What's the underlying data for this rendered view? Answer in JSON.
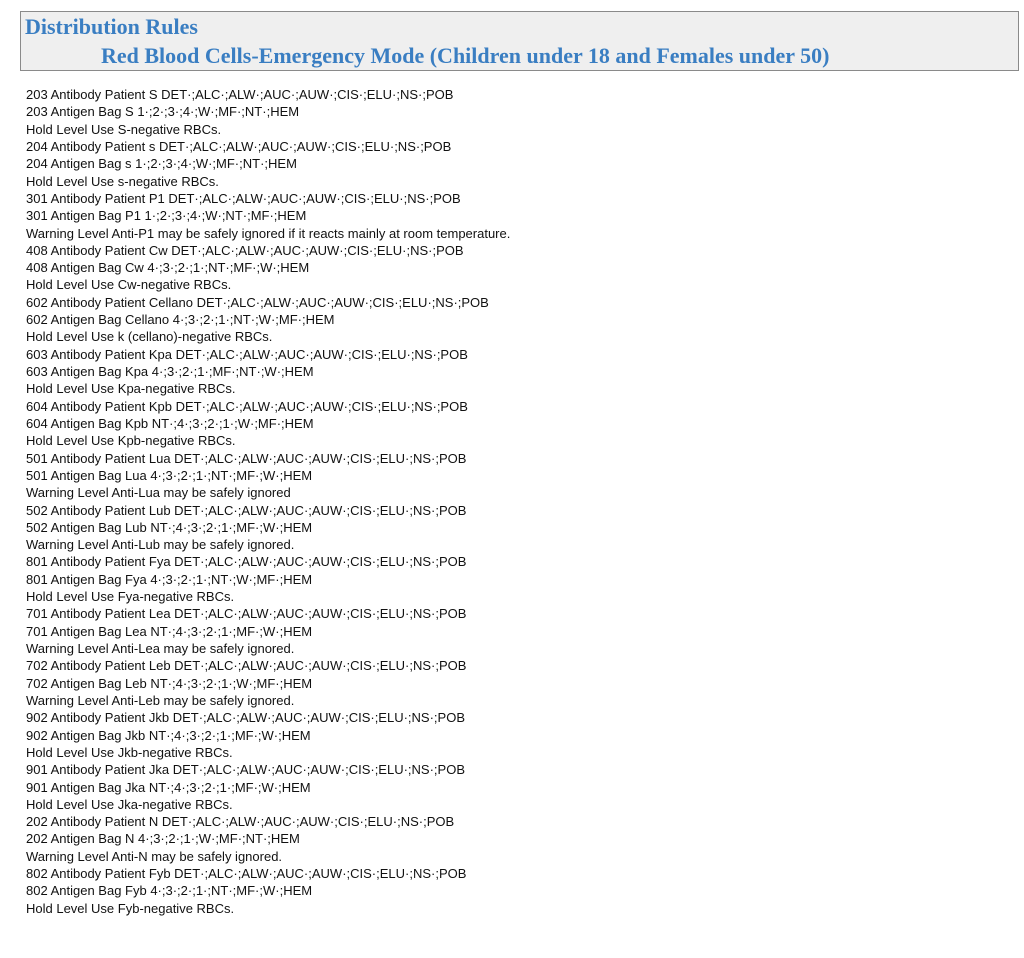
{
  "header": {
    "title": "Distribution Rules",
    "subtitle": "Red Blood Cells-Emergency Mode (Children under 18 and Females under 50)",
    "title_color": "#3a7ec2"
  },
  "rules": [
    "203 Antibody Patient S DET·;ALC·;ALW·;AUC·;AUW·;CIS·;ELU·;NS·;POB",
    "203 Antigen Bag S 1·;2·;3·;4·;W·;MF·;NT·;HEM",
    "Hold Level Use S-negative RBCs.",
    "204 Antibody Patient s DET·;ALC·;ALW·;AUC·;AUW·;CIS·;ELU·;NS·;POB",
    "204 Antigen Bag s 1·;2·;3·;4·;W·;MF·;NT·;HEM",
    "Hold Level Use s-negative RBCs.",
    "301 Antibody Patient P1 DET·;ALC·;ALW·;AUC·;AUW·;CIS·;ELU·;NS·;POB",
    "301 Antigen Bag P1 1·;2·;3·;4·;W·;NT·;MF·;HEM",
    "Warning Level Anti-P1 may be safely ignored if it reacts mainly at room temperature.",
    "408 Antibody Patient Cw DET·;ALC·;ALW·;AUC·;AUW·;CIS·;ELU·;NS·;POB",
    "408 Antigen Bag Cw 4·;3·;2·;1·;NT·;MF·;W·;HEM",
    "Hold Level Use Cw-negative RBCs.",
    "602 Antibody Patient Cellano DET·;ALC·;ALW·;AUC·;AUW·;CIS·;ELU·;NS·;POB",
    "602 Antigen Bag Cellano 4·;3·;2·;1·;NT·;W·;MF·;HEM",
    "Hold Level Use k (cellano)-negative RBCs.",
    "603 Antibody Patient Kpa DET·;ALC·;ALW·;AUC·;AUW·;CIS·;ELU·;NS·;POB",
    "603 Antigen Bag Kpa 4·;3·;2·;1·;MF·;NT·;W·;HEM",
    "Hold Level Use Kpa-negative RBCs.",
    "604 Antibody Patient Kpb DET·;ALC·;ALW·;AUC·;AUW·;CIS·;ELU·;NS·;POB",
    "604 Antigen Bag Kpb NT·;4·;3·;2·;1·;W·;MF·;HEM",
    "Hold Level Use Kpb-negative RBCs.",
    "501 Antibody Patient Lua DET·;ALC·;ALW·;AUC·;AUW·;CIS·;ELU·;NS·;POB",
    "501 Antigen Bag Lua 4·;3·;2·;1·;NT·;MF·;W·;HEM",
    "Warning Level Anti-Lua may be safely ignored",
    "502 Antibody Patient Lub DET·;ALC·;ALW·;AUC·;AUW·;CIS·;ELU·;NS·;POB",
    "502 Antigen Bag Lub NT·;4·;3·;2·;1·;MF·;W·;HEM",
    "Warning Level Anti-Lub may be safely ignored.",
    "801 Antibody Patient Fya DET·;ALC·;ALW·;AUC·;AUW·;CIS·;ELU·;NS·;POB",
    "801 Antigen Bag Fya 4·;3·;2·;1·;NT·;W·;MF·;HEM",
    "Hold Level Use Fya-negative RBCs.",
    "701 Antibody Patient Lea DET·;ALC·;ALW·;AUC·;AUW·;CIS·;ELU·;NS·;POB",
    "701 Antigen Bag Lea NT·;4·;3·;2·;1·;MF·;W·;HEM",
    "Warning Level Anti-Lea may be safely ignored.",
    "702 Antibody Patient Leb DET·;ALC·;ALW·;AUC·;AUW·;CIS·;ELU·;NS·;POB",
    "702 Antigen Bag Leb NT·;4·;3·;2·;1·;W·;MF·;HEM",
    "Warning Level Anti-Leb may be safely ignored.",
    "902 Antibody Patient Jkb DET·;ALC·;ALW·;AUC·;AUW·;CIS·;ELU·;NS·;POB",
    "902 Antigen Bag Jkb NT·;4·;3·;2·;1·;MF·;W·;HEM",
    "Hold Level Use Jkb-negative RBCs.",
    "901 Antibody Patient Jka DET·;ALC·;ALW·;AUC·;AUW·;CIS·;ELU·;NS·;POB",
    "901 Antigen Bag Jka NT·;4·;3·;2·;1·;MF·;W·;HEM",
    "Hold Level Use Jka-negative RBCs.",
    "202 Antibody Patient N DET·;ALC·;ALW·;AUC·;AUW·;CIS·;ELU·;NS·;POB",
    "202 Antigen Bag N 4·;3·;2·;1·;W·;MF·;NT·;HEM",
    "Warning Level Anti-N may be safely ignored.",
    "802 Antibody Patient Fyb DET·;ALC·;ALW·;AUC·;AUW·;CIS·;ELU·;NS·;POB",
    "802 Antigen Bag Fyb 4·;3·;2·;1·;NT·;MF·;W·;HEM",
    "Hold Level Use Fyb-negative RBCs."
  ]
}
